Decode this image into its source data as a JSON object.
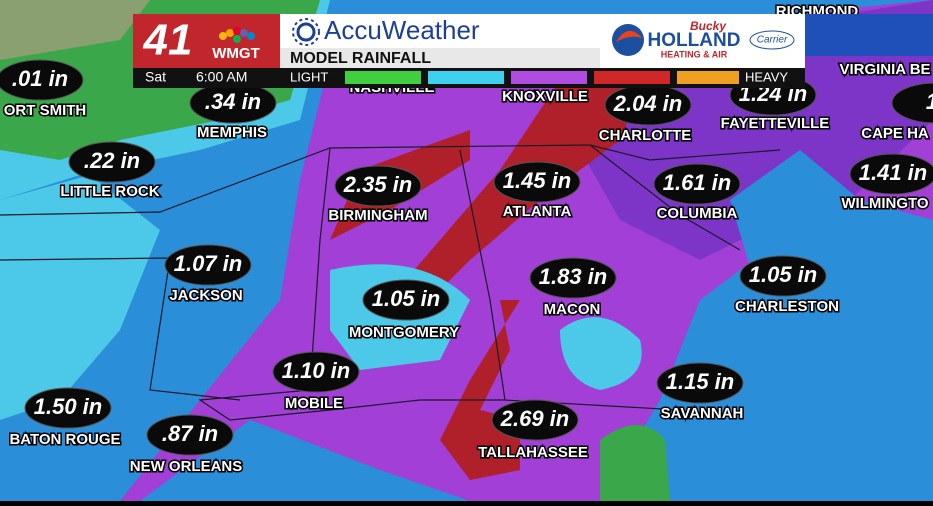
{
  "header": {
    "channel": "41",
    "station": "WMGT",
    "day": "Sat",
    "time": "6:00 AM",
    "brand": "AccuWeather",
    "product": "MODEL RAINFALL",
    "legend_low": "LIGHT",
    "legend_high": "HEAVY",
    "sponsor": {
      "script": "Bucky",
      "name": "HOLLAND",
      "tagline": "HEATING & AIR",
      "partner": "Carrier"
    }
  },
  "background_labels": [
    "NASHVILLE",
    "KNOXVILLE",
    "RICHMOND",
    "VIRGINIA BE"
  ],
  "cities": [
    {
      "name": "ORT SMITH",
      "amount": ".01 in"
    },
    {
      "name": "MEMPHIS",
      "amount": ".34 in"
    },
    {
      "name": "LITTLE ROCK",
      "amount": ".22 in"
    },
    {
      "name": "BIRMINGHAM",
      "amount": "2.35 in"
    },
    {
      "name": "ATLANTA",
      "amount": "1.45 in"
    },
    {
      "name": "CHARLOTTE",
      "amount": "2.04 in"
    },
    {
      "name": "FAYETTEVILLE",
      "amount": "1.24 in"
    },
    {
      "name": "COLUMBIA",
      "amount": "1.61 in"
    },
    {
      "name": "WILMINGTO",
      "amount": "1.41 in"
    },
    {
      "name": "CAPE HA",
      "amount": "1."
    },
    {
      "name": "JACKSON",
      "amount": "1.07 in"
    },
    {
      "name": "MONTGOMERY",
      "amount": "1.05 in"
    },
    {
      "name": "MACON",
      "amount": "1.83 in"
    },
    {
      "name": "CHARLESTON",
      "amount": "1.05 in"
    },
    {
      "name": "MOBILE",
      "amount": "1.10 in"
    },
    {
      "name": "SAVANNAH",
      "amount": "1.15 in"
    },
    {
      "name": "BATON ROUGE",
      "amount": "1.50 in"
    },
    {
      "name": "NEW ORLEANS",
      "amount": ".87 in"
    },
    {
      "name": "TALLAHASSEE",
      "amount": "2.69 in"
    }
  ]
}
